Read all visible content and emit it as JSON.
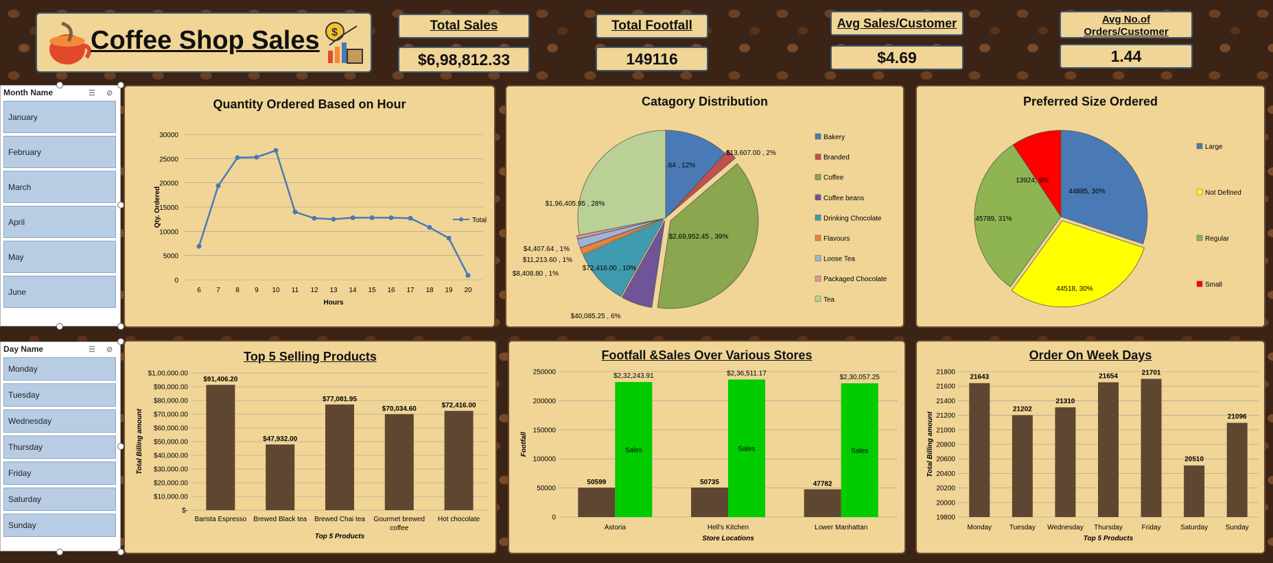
{
  "header": {
    "title": "Coffee Shop Sales"
  },
  "kpis": [
    {
      "label": "Total Sales",
      "value": "$6,98,812.33"
    },
    {
      "label": "Total Footfall",
      "value": "149116"
    },
    {
      "label": "Avg Sales/Customer",
      "value": "$4.69"
    },
    {
      "label": "Avg No.of Orders/Customer",
      "value": "1.44"
    }
  ],
  "month_slicer": {
    "title": "Month Name",
    "items": [
      "January",
      "February",
      "March",
      "April",
      "May",
      "June"
    ]
  },
  "day_slicer": {
    "title": "Day Name",
    "items": [
      "Monday",
      "Tuesday",
      "Wednesday",
      "Thursday",
      "Friday",
      "Saturday",
      "Sunday"
    ]
  },
  "colors": {
    "bar_brown": "#5f4631",
    "sales_green": "#00cc00",
    "line_blue": "#4a7ab5",
    "card_bg": "#f0d596"
  },
  "chart_data": [
    {
      "id": "hourly",
      "type": "line",
      "title": "Quantity Ordered Based on Hour",
      "xlabel": "Hours",
      "ylabel": "Qty. Ordered",
      "x": [
        6,
        7,
        8,
        9,
        10,
        11,
        12,
        13,
        14,
        15,
        16,
        17,
        18,
        19,
        20
      ],
      "series": [
        {
          "name": "Total",
          "values": [
            6900,
            19400,
            25200,
            25300,
            26700,
            14000,
            12700,
            12500,
            12800,
            12800,
            12800,
            12700,
            10800,
            8600,
            900
          ]
        }
      ],
      "ylim": [
        0,
        30000
      ],
      "yticks": [
        "0",
        "5000",
        "10000",
        "15000",
        "20000",
        "25000",
        "30000"
      ],
      "grid": true,
      "legend": "right"
    },
    {
      "id": "category",
      "type": "pie",
      "title": "Catagory Distribution",
      "slices": [
        {
          "name": "Bakery",
          "value": 82315.64,
          "label": "$82,315.64 , 12%",
          "color": "#4a7ab5"
        },
        {
          "name": "Branded",
          "value": 13607.0,
          "label": "$13,607.00 , 2%",
          "color": "#c0504d"
        },
        {
          "name": "Coffee",
          "value": 269952.45,
          "label": "$2,69,952.45 , 39%",
          "color": "#8aa64e"
        },
        {
          "name": "Coffee beans",
          "value": 40085.25,
          "label": "$40,085.25 , 6%",
          "color": "#6f5597"
        },
        {
          "name": "Drinking Chocolate",
          "value": 72416.0,
          "label": "$72,416.00 , 10%",
          "color": "#3f9bb0"
        },
        {
          "name": "Flavours",
          "value": 8408.8,
          "label": "$8,408.80 , 1%",
          "color": "#e8843a"
        },
        {
          "name": "Loose Tea",
          "value": 11213.6,
          "label": "$11,213.60 , 1%",
          "color": "#9db3dc"
        },
        {
          "name": "Packaged Chocolate",
          "value": 4407.64,
          "label": "$4,407.64 , 1%",
          "color": "#d99795"
        },
        {
          "name": "Tea",
          "value": 196405.95,
          "label": "$1,96,405.95 , 28%",
          "color": "#b9d196"
        }
      ],
      "legend": "right"
    },
    {
      "id": "size",
      "type": "pie",
      "title": "Preferred Size Ordered",
      "slices": [
        {
          "name": "Large",
          "value": 44885,
          "label": "44885, 30%",
          "color": "#4a7ab5"
        },
        {
          "name": "Not Defined",
          "value": 44518,
          "label": "44518, 30%",
          "color": "#ffff00"
        },
        {
          "name": "Regular",
          "value": 45789,
          "label": "45789, 31%",
          "color": "#8fb552"
        },
        {
          "name": "Small",
          "value": 13924,
          "label": "13924, 9%",
          "color": "#ff0000"
        }
      ],
      "legend": "right"
    },
    {
      "id": "top5",
      "type": "bar",
      "title": "Top 5 Selling Products",
      "xlabel": "Top 5 Products",
      "ylabel": "Total Billing amount",
      "categories": [
        "Barista Espresso",
        "Brewed Black tea",
        "Brewed Chai tea",
        "Gourmet brewed coffee",
        "Hot chocolate"
      ],
      "values": [
        91406.2,
        47932.0,
        77081.95,
        70034.6,
        72416.0
      ],
      "labels": [
        "$91,406.20",
        "$47,932.00",
        "$77,081.95",
        "$70,034.60",
        "$72,416.00"
      ],
      "ylim": [
        0,
        100000
      ],
      "yticks": [
        "$-",
        "$10,000.00",
        "$20,000.00",
        "$30,000.00",
        "$40,000.00",
        "$50,000.00",
        "$60,000.00",
        "$70,000.00",
        "$80,000.00",
        "$90,000.00",
        "$1,00,000.00"
      ]
    },
    {
      "id": "stores",
      "type": "bar",
      "title": "Footfall &Sales Over Various Stores",
      "xlabel": "Store Locations",
      "ylabel": "Footfall",
      "categories": [
        "Astoria",
        "Hell's Kitchen",
        "Lower Manhattan"
      ],
      "series": [
        {
          "values": [
            50599,
            50735,
            47782
          ],
          "labels": [
            "50599",
            "50735",
            "47782"
          ]
        },
        {
          "name": "Sales",
          "values": [
            232243.91,
            236511.17,
            230057.25
          ],
          "labels": [
            "$2,32,243.91",
            "$2,36,511.17",
            "$2,30,057.25"
          ]
        }
      ],
      "ylim": [
        0,
        250000
      ],
      "yticks": [
        "0",
        "50000",
        "100000",
        "150000",
        "200000",
        "250000"
      ]
    },
    {
      "id": "weekdays",
      "type": "bar",
      "title": "Order On Week Days",
      "xlabel": "Top 5 Products",
      "ylabel": "Total Billing amount",
      "categories": [
        "Monday",
        "Tuesday",
        "Wednesday",
        "Thursday",
        "Friday",
        "Saturday",
        "Sunday"
      ],
      "values": [
        21643,
        21202,
        21310,
        21654,
        21701,
        20510,
        21096
      ],
      "ylim": [
        19800,
        21800
      ],
      "yticks": [
        "19800",
        "20000",
        "20200",
        "20400",
        "20600",
        "20800",
        "21000",
        "21200",
        "21400",
        "21600",
        "21800"
      ]
    }
  ]
}
